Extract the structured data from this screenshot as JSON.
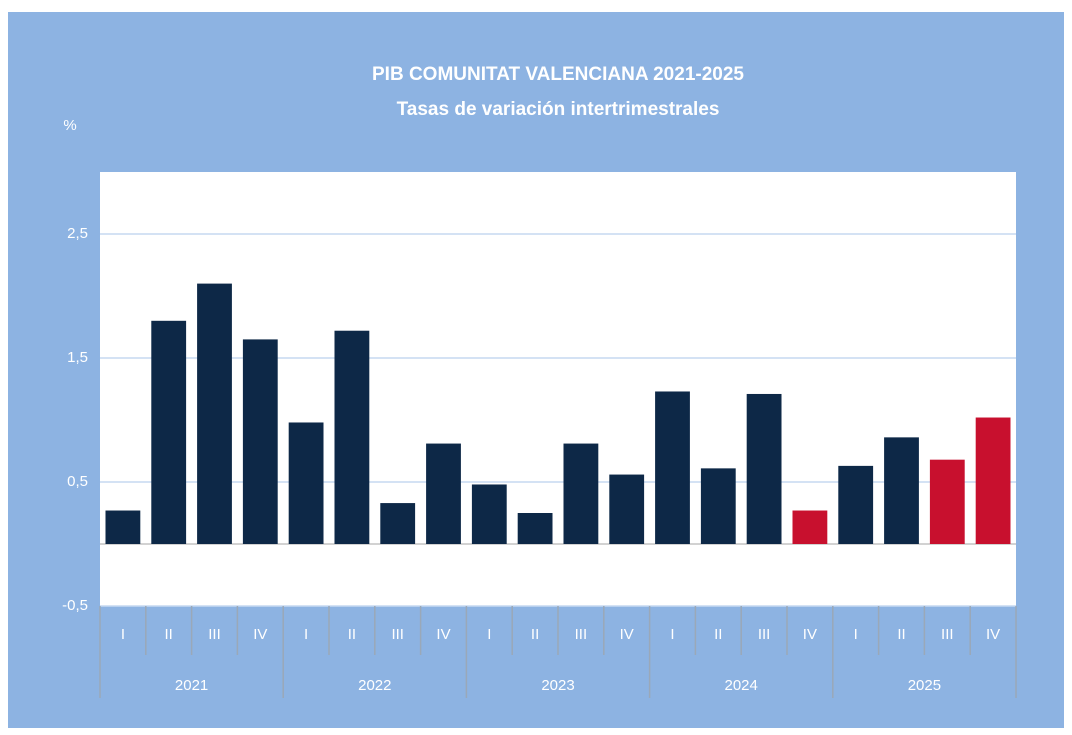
{
  "chart_data": {
    "type": "bar",
    "title": "PIB  COMUNITAT VALENCIANA 2021-2025",
    "subtitle": "Tasas de variación intertrimestrales",
    "y_label": "%",
    "categories": [
      "I",
      "II",
      "III",
      "IV",
      "I",
      "II",
      "III",
      "IV",
      "I",
      "II",
      "III",
      "IV",
      "I",
      "II",
      "III",
      "IV",
      "I",
      "II",
      "III",
      "IV"
    ],
    "category_groups": [
      "2021",
      "2022",
      "2023",
      "2024",
      "2025"
    ],
    "values": [
      0.27,
      1.8,
      2.1,
      1.65,
      0.98,
      1.72,
      0.33,
      0.81,
      0.48,
      0.25,
      0.81,
      0.56,
      1.23,
      0.61,
      1.21,
      0.27,
      0.63,
      0.86,
      0.68,
      1.02
    ],
    "colors": [
      "#0d2847",
      "#0d2847",
      "#0d2847",
      "#0d2847",
      "#0d2847",
      "#0d2847",
      "#0d2847",
      "#0d2847",
      "#0d2847",
      "#0d2847",
      "#0d2847",
      "#0d2847",
      "#0d2847",
      "#0d2847",
      "#0d2847",
      "#c8102e",
      "#0d2847",
      "#0d2847",
      "#c8102e",
      "#c8102e"
    ],
    "ylim": [
      -0.5,
      3.0
    ],
    "yticks": [
      {
        "value": -0.5,
        "label": "-0,5"
      },
      {
        "value": 0.5,
        "label": "0,5"
      },
      {
        "value": 1.5,
        "label": "1,5"
      },
      {
        "value": 2.5,
        "label": "2,5"
      }
    ],
    "grid": true
  }
}
